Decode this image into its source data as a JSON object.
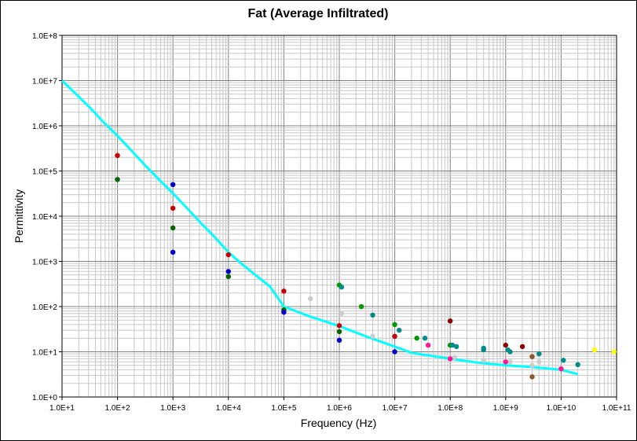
{
  "chart_data": {
    "type": "scatter",
    "title": "Fat (Average Infiltrated)",
    "xlabel": "Frequency (Hz)",
    "ylabel": "Permittivity",
    "xscale": "log",
    "yscale": "log",
    "xlim": [
      10,
      100000000000
    ],
    "ylim": [
      1,
      100000000
    ],
    "grid": true,
    "x_tick_labels": [
      "1.0E+1",
      "1.0E+2",
      "1.0E+3",
      "1.0E+4",
      "1.0E+5",
      "1.0E+6",
      "1.0E+7",
      "1.0E+8",
      "1.0E+9",
      "1.0E+10",
      "1.0E+11"
    ],
    "y_tick_labels": [
      "1.0E+0",
      "1.0E+1",
      "1.0E+2",
      "1.0E+3",
      "1.0E+4",
      "1.0E+5",
      "1.0E+6",
      "1.0E+7",
      "1.0E+8"
    ],
    "curve": {
      "color": "#00ffff",
      "points": [
        [
          10,
          10000000
        ],
        [
          18,
          5000000
        ],
        [
          32,
          2500000
        ],
        [
          56,
          1200000
        ],
        [
          100,
          600000
        ],
        [
          180,
          280000
        ],
        [
          320,
          130000
        ],
        [
          560,
          65000
        ],
        [
          1000,
          32000
        ],
        [
          1800,
          15000
        ],
        [
          3200,
          7000
        ],
        [
          5600,
          3500
        ],
        [
          10000,
          1600
        ],
        [
          18000,
          850
        ],
        [
          32000,
          480
        ],
        [
          56000,
          280
        ],
        [
          100000,
          100
        ],
        [
          300000,
          60
        ],
        [
          1000000,
          37
        ],
        [
          3000000,
          22
        ],
        [
          10000000,
          13
        ],
        [
          20000000,
          9.5
        ],
        [
          100000000,
          7
        ],
        [
          300000000,
          5.8
        ],
        [
          1000000000,
          5
        ],
        [
          3000000000,
          4.6
        ],
        [
          10000000000,
          4.0
        ],
        [
          20000000000,
          3.2
        ]
      ]
    },
    "series": [
      {
        "color": "#cc0000",
        "points": [
          [
            100,
            220000
          ],
          [
            1000,
            15000
          ],
          [
            10000,
            1400
          ],
          [
            100000,
            220
          ],
          [
            1000000,
            38
          ],
          [
            10000000,
            22
          ]
        ]
      },
      {
        "color": "#006400",
        "points": [
          [
            100,
            65000
          ],
          [
            1000,
            5500
          ],
          [
            10000,
            460
          ],
          [
            100000,
            85
          ],
          [
            1000000,
            28
          ]
        ]
      },
      {
        "color": "#0000cc",
        "points": [
          [
            1000,
            50000
          ],
          [
            1000,
            1600
          ],
          [
            10000,
            600
          ],
          [
            100000,
            75
          ],
          [
            1000000,
            18
          ],
          [
            10000000,
            10
          ]
        ]
      },
      {
        "color": "#009900",
        "points": [
          [
            1000000,
            300
          ],
          [
            2500000,
            100
          ],
          [
            10000000,
            40
          ],
          [
            25000000,
            20
          ],
          [
            100000000,
            14
          ]
        ]
      },
      {
        "color": "#008b8b",
        "points": [
          [
            1100000,
            270
          ],
          [
            4000000,
            65
          ],
          [
            12000000,
            30
          ],
          [
            35000000,
            20
          ],
          [
            110000000,
            14
          ],
          [
            130000000,
            13
          ],
          [
            400000000,
            12
          ],
          [
            400000000,
            11
          ],
          [
            1100000000,
            11
          ],
          [
            1200000000,
            10
          ],
          [
            4000000000,
            9
          ],
          [
            11000000000,
            6.5
          ],
          [
            20000000000,
            5.2
          ]
        ]
      },
      {
        "color": "#cccccc",
        "points": [
          [
            300000,
            150
          ],
          [
            1100000,
            70
          ],
          [
            4000000,
            22
          ],
          [
            120000000,
            7.5
          ],
          [
            400000000,
            6.5
          ],
          [
            1200000000,
            6
          ],
          [
            3000000000,
            5
          ],
          [
            4000000000,
            6
          ]
        ]
      },
      {
        "color": "#ff1493",
        "points": [
          [
            40000000,
            14
          ],
          [
            100000000,
            7
          ],
          [
            1000000000,
            6
          ],
          [
            10000000000,
            4.2
          ]
        ]
      },
      {
        "color": "#8b0000",
        "points": [
          [
            100000000,
            48
          ],
          [
            1000000000,
            14
          ],
          [
            2000000000,
            13
          ]
        ]
      },
      {
        "color": "#8b5a2b",
        "points": [
          [
            3000000000,
            7.8
          ],
          [
            3000000000,
            2.8
          ]
        ]
      },
      {
        "color": "#ffff00",
        "points": [
          [
            40000000000,
            11
          ],
          [
            90000000000,
            10
          ]
        ]
      }
    ]
  }
}
